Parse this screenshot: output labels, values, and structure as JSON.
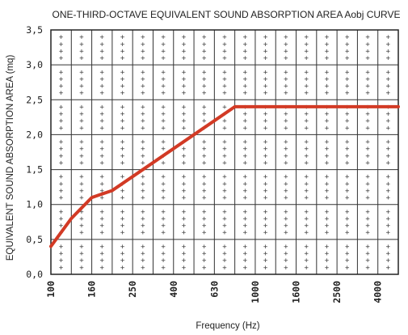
{
  "chart_data": {
    "type": "line",
    "title": "ONE-THIRD-OCTAVE EQUIVALENT SOUND ABSORPTION AREA Aobj CURVE",
    "xlabel": "Frequency (Hz)",
    "ylabel": "EQUIVALENT SOUND ABSORPTION AREA (mq)",
    "x": [
      100,
      125,
      160,
      200,
      250,
      315,
      400,
      500,
      630,
      800,
      1000,
      1250,
      1600,
      2000,
      2500,
      3150,
      4000,
      5000
    ],
    "x_tick_labels": [
      "100",
      "160",
      "250",
      "400",
      "630",
      "1000",
      "1600",
      "2500",
      "4000"
    ],
    "y_tick_labels": [
      "0,0",
      "0,5",
      "1,0",
      "1,5",
      "2,0",
      "2,5",
      "3,0",
      "3,5"
    ],
    "ylim": [
      0,
      3.5
    ],
    "series": [
      {
        "values": [
          0.4,
          0.8,
          1.1,
          1.2,
          1.4,
          1.6,
          1.8,
          2.0,
          2.2,
          2.4,
          2.4,
          2.4,
          2.4,
          2.4,
          2.4,
          2.4,
          2.4,
          2.4
        ]
      }
    ],
    "grid": true,
    "line_color": "#d23a25"
  }
}
